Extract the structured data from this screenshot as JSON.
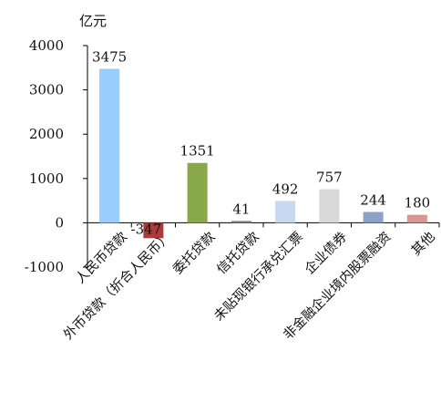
{
  "chart_data": {
    "type": "bar",
    "unit_label": "亿元",
    "ylim": [
      -1000,
      4000
    ],
    "yticks": [
      4000,
      3000,
      2000,
      1000,
      0,
      -1000
    ],
    "categories": [
      "人民币贷款",
      "外币贷款（折合人民币）",
      "委托贷款",
      "信托贷款",
      "未贴现银行承兑汇票",
      "企业债券",
      "非金融企业境内股票融资",
      "其他"
    ],
    "values": [
      3475,
      -347,
      1351,
      41,
      492,
      757,
      244,
      180
    ],
    "data_labels": [
      "3475",
      "-347",
      "1351",
      "41",
      "492",
      "757",
      "244",
      "180"
    ],
    "colors": [
      "#99ccff",
      "#b03a3a",
      "#88a84a",
      "#7f7f7f",
      "#c6d9f1",
      "#d9d9d9",
      "#8aa2c8",
      "#d99694"
    ],
    "grid": false,
    "legend": "none"
  }
}
